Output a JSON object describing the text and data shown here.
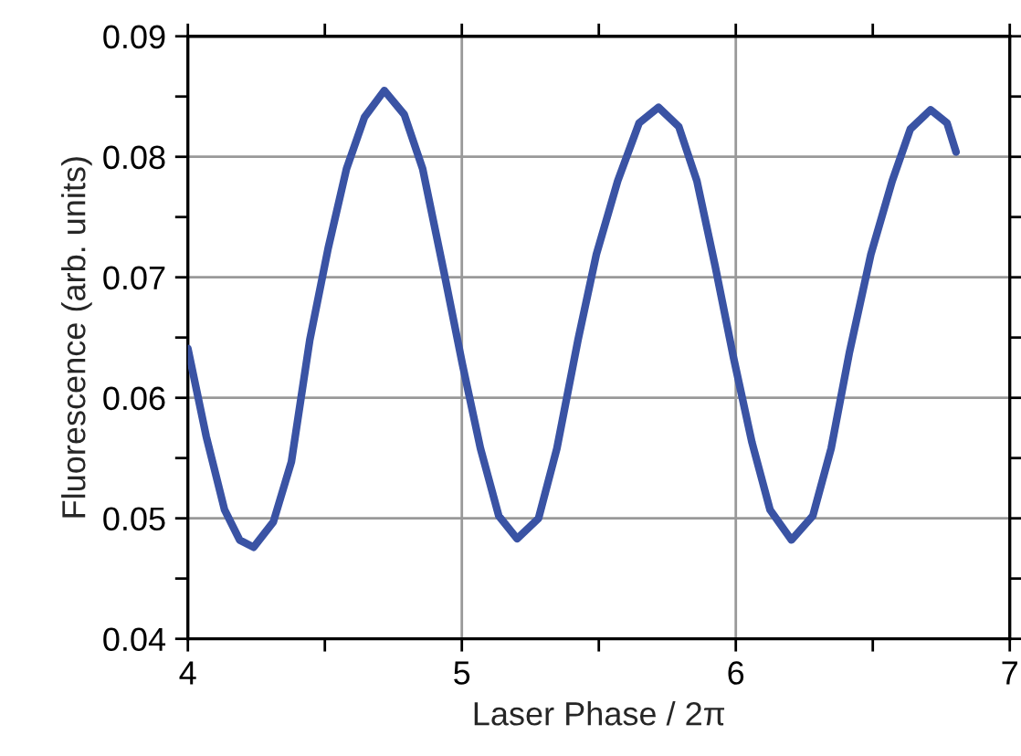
{
  "chart_data": {
    "type": "line",
    "xlabel": "Laser Phase / 2π",
    "ylabel": "Fluorescence (arb. units)",
    "xlim": [
      4,
      7
    ],
    "ylim": [
      0.04,
      0.09
    ],
    "xticks": [
      4,
      {
        "value": 4.5,
        "label": null
      },
      5,
      {
        "value": 5.5,
        "label": null
      },
      6,
      {
        "value": 6.5,
        "label": null
      },
      7
    ],
    "yticks": [
      0.04,
      {
        "value": 0.045,
        "label": null
      },
      0.05,
      {
        "value": 0.055,
        "label": null
      },
      0.06,
      {
        "value": 0.065,
        "label": null
      },
      0.07,
      {
        "value": 0.075,
        "label": null
      },
      0.08,
      {
        "value": 0.085,
        "label": null
      },
      0.09
    ],
    "grid": true,
    "marker": "none",
    "line_style": "solid",
    "series": [
      {
        "color": "#3a53a4",
        "x": [
          4.0,
          4.067,
          4.134,
          4.189,
          4.24,
          4.312,
          4.378,
          4.445,
          4.512,
          4.579,
          4.645,
          4.717,
          4.79,
          4.857,
          4.935,
          5.002,
          5.068,
          5.135,
          5.202,
          5.28,
          5.347,
          5.424,
          5.491,
          5.569,
          5.647,
          5.718,
          5.792,
          5.858,
          5.925,
          5.992,
          6.059,
          6.125,
          6.203,
          6.281,
          6.348,
          6.415,
          6.493,
          6.571,
          6.637,
          6.711,
          6.771,
          6.804
        ],
        "values": [
          0.0641,
          0.0568,
          0.0507,
          0.0482,
          0.0476,
          0.0497,
          0.0547,
          0.0648,
          0.0724,
          0.079,
          0.0833,
          0.0855,
          0.0835,
          0.079,
          0.0704,
          0.0628,
          0.0558,
          0.0502,
          0.0483,
          0.05,
          0.0558,
          0.0648,
          0.0719,
          0.078,
          0.0828,
          0.0841,
          0.0825,
          0.078,
          0.0709,
          0.0633,
          0.0563,
          0.0507,
          0.0482,
          0.0502,
          0.0558,
          0.0638,
          0.0719,
          0.078,
          0.0823,
          0.0839,
          0.0828,
          0.0804
        ]
      }
    ]
  }
}
